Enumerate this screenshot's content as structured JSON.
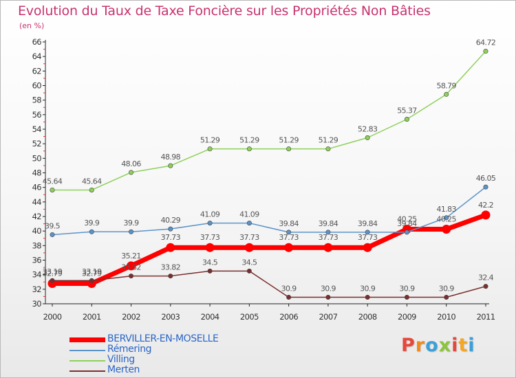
{
  "header": {
    "title": "Evolution du Taux de Taxe Foncière sur les Propriétés Non Bâties",
    "unit": "(en %)"
  },
  "logo": {
    "letters": [
      "P",
      "r",
      "o",
      "x",
      "i",
      "t",
      "i"
    ],
    "colors": [
      "#e8483a",
      "#f28a1c",
      "#3aa0d8",
      "#8cc43c",
      "#e8483a",
      "#f5a623",
      "#3aa0d8"
    ]
  },
  "chart_data": {
    "type": "line",
    "title": "Evolution du Taux de Taxe Foncière sur les Propriétés Non Bâties",
    "ylabel": "(en %)",
    "xlabel": "",
    "x": [
      "2000",
      "2001",
      "2002",
      "2003",
      "2004",
      "2005",
      "2006",
      "2007",
      "2008",
      "2009",
      "2010",
      "2011"
    ],
    "ylim": [
      30,
      66
    ],
    "yticks": [
      30,
      32,
      34,
      36,
      38,
      40,
      42,
      44,
      46,
      48,
      50,
      52,
      54,
      56,
      58,
      60,
      62,
      64,
      66
    ],
    "grid": false,
    "legend_position": "bottom-left",
    "series": [
      {
        "name": "BERVILLER-EN-MOSELLE",
        "color": "#ff0000",
        "values": [
          32.79,
          32.79,
          35.21,
          37.73,
          37.73,
          37.73,
          37.73,
          37.73,
          37.73,
          40.25,
          40.25,
          42.2
        ],
        "labels": [
          "32.79",
          "32.79",
          "35.21",
          "37.73",
          "37.73",
          "37.73",
          "37.73",
          "37.73",
          "37.73",
          "40.25",
          "40.25",
          "42.2"
        ]
      },
      {
        "name": "Rémering",
        "color": "#5b93c9",
        "values": [
          39.5,
          39.9,
          39.9,
          40.29,
          41.09,
          41.09,
          39.84,
          39.84,
          39.84,
          39.84,
          41.83,
          46.05
        ],
        "labels": [
          "39.5",
          "39.9",
          "39.9",
          "40.29",
          "41.09",
          "41.09",
          "39.84",
          "39.84",
          "39.84",
          "39.84",
          "41.83",
          "46.05"
        ]
      },
      {
        "name": "Villing",
        "color": "#8ed05a",
        "values": [
          45.64,
          45.64,
          48.06,
          48.98,
          51.29,
          51.29,
          51.29,
          51.29,
          52.83,
          55.37,
          58.79,
          64.72
        ],
        "labels": [
          "45.64",
          "45.64",
          "48.06",
          "48.98",
          "51.29",
          "51.29",
          "51.29",
          "51.29",
          "52.83",
          "55.37",
          "58.79",
          "64.72"
        ]
      },
      {
        "name": "Merten",
        "color": "#7a2e2e",
        "values": [
          33.19,
          33.19,
          33.82,
          33.82,
          34.5,
          34.5,
          30.9,
          30.9,
          30.9,
          30.9,
          30.9,
          32.4
        ],
        "labels": [
          "33.19",
          "33.19",
          "33.82",
          "33.82",
          "34.5",
          "34.5",
          "30.9",
          "30.9",
          "30.9",
          "30.9",
          "30.9",
          "32.4"
        ]
      }
    ]
  }
}
